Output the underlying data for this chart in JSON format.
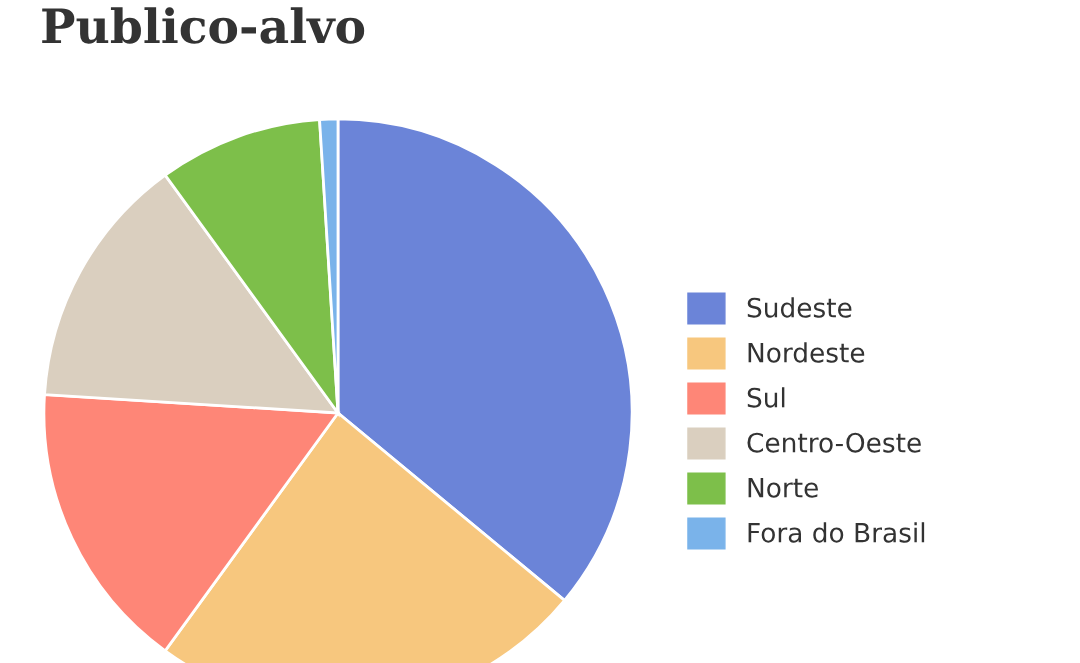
{
  "chart_data": {
    "type": "pie",
    "title": "Publico-alvo",
    "categories": [
      "Sudeste",
      "Nordeste",
      "Sul",
      "Centro-Oeste",
      "Norte",
      "Fora do Brasil"
    ],
    "values": [
      36,
      24,
      16,
      14,
      9,
      1
    ],
    "colors": [
      "#6b84d8",
      "#f7c77e",
      "#fe8677",
      "#dacfbf",
      "#7dbf4a",
      "#7ab3ea"
    ],
    "legend": "right"
  }
}
